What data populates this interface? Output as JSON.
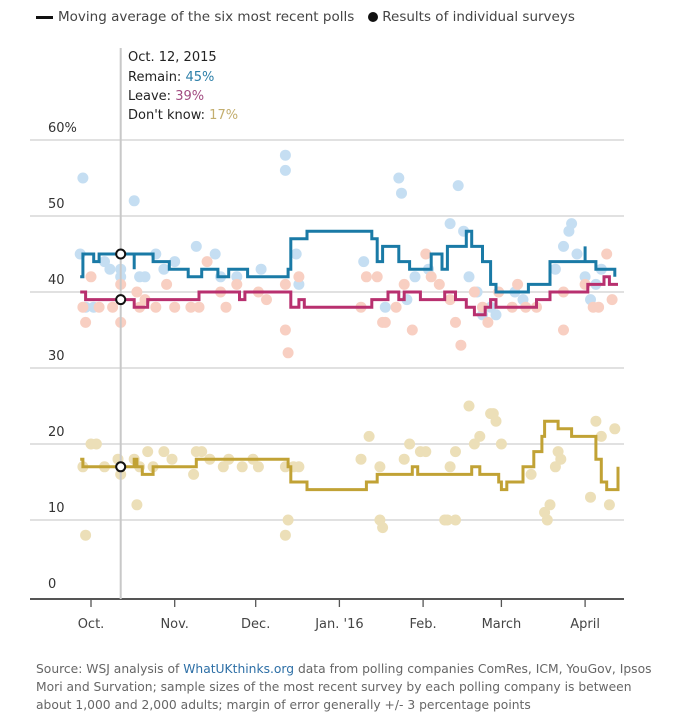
{
  "legend": {
    "line_label": "Moving average of the six most recent polls",
    "dot_label": "Results of individual surveys"
  },
  "tooltip": {
    "date": "Oct. 12, 2015",
    "remain_label": "Remain: ",
    "remain_value": "45%",
    "leave_label": "Leave: ",
    "leave_value": "39%",
    "dontknow_label": "Don't know: ",
    "dontknow_value": "17%"
  },
  "source": {
    "prefix": "Source: WSJ analysis of ",
    "link": "WhatUKthinks.org",
    "suffix": " data from polling companies ComRes, ICM, YouGov, Ipsos Mori and Survation; sample sizes of the most recent survey by each polling company is between about 1,000 and 2,000 adults; margin of error generally +/- 3 percentage points"
  },
  "chart_data": {
    "type": "line",
    "title": "",
    "xlabel": "",
    "ylabel": "",
    "x_unit": "days since Oct. 1, 2015",
    "xlim": [
      -3,
      198
    ],
    "ylim": [
      0,
      60
    ],
    "yticks": [
      0,
      10,
      20,
      30,
      40,
      50,
      60
    ],
    "ytick_labels": [
      "0",
      "10",
      "20",
      "30",
      "40",
      "50",
      "60%"
    ],
    "xticks": [
      0,
      31,
      61,
      92,
      123,
      152,
      183
    ],
    "xtick_labels": [
      "Oct.",
      "Nov.",
      "Dec.",
      "Jan. '16",
      "Feb.",
      "March",
      "April"
    ],
    "grid": true,
    "highlight_day": 11,
    "colors": {
      "remain": "#1a7aa6",
      "leave": "#b8306f",
      "dontknow": "#c1a235",
      "remain_dot": "#c5def2",
      "leave_dot": "#f8cfc2",
      "dontknow_dot": "#ecdfb8"
    },
    "series": [
      {
        "name": "Remain",
        "key": "remain",
        "steps": [
          [
            -4,
            42
          ],
          [
            -3,
            45
          ],
          [
            1,
            45
          ],
          [
            1,
            44
          ],
          [
            3,
            44
          ],
          [
            3,
            45
          ],
          [
            11,
            45
          ],
          [
            16,
            45
          ],
          [
            16,
            43
          ],
          [
            16,
            45
          ],
          [
            23,
            45
          ],
          [
            23,
            44
          ],
          [
            29,
            44
          ],
          [
            29,
            43
          ],
          [
            36,
            43
          ],
          [
            36,
            42
          ],
          [
            41,
            42
          ],
          [
            41,
            43
          ],
          [
            47,
            43
          ],
          [
            47,
            42
          ],
          [
            51,
            42
          ],
          [
            51,
            43
          ],
          [
            58,
            43
          ],
          [
            58,
            42
          ],
          [
            73,
            42
          ],
          [
            73,
            43
          ],
          [
            74,
            47
          ],
          [
            80,
            47
          ],
          [
            80,
            48
          ],
          [
            104,
            48
          ],
          [
            104,
            47
          ],
          [
            106,
            47
          ],
          [
            106,
            44
          ],
          [
            108,
            44
          ],
          [
            108,
            46
          ],
          [
            114,
            46
          ],
          [
            114,
            44
          ],
          [
            118,
            44
          ],
          [
            118,
            43
          ],
          [
            126,
            43
          ],
          [
            126,
            45
          ],
          [
            130,
            45
          ],
          [
            130,
            43
          ],
          [
            132,
            43
          ],
          [
            132,
            46
          ],
          [
            139,
            46
          ],
          [
            139,
            48
          ],
          [
            141,
            48
          ],
          [
            141,
            46
          ],
          [
            145,
            46
          ],
          [
            145,
            44
          ],
          [
            148,
            44
          ],
          [
            148,
            41
          ],
          [
            150,
            41
          ],
          [
            150,
            40
          ],
          [
            162,
            40
          ],
          [
            162,
            41
          ],
          [
            170,
            41
          ],
          [
            170,
            44
          ],
          [
            182,
            44
          ],
          [
            183,
            46
          ],
          [
            183,
            44
          ],
          [
            187,
            44
          ],
          [
            187,
            43
          ],
          [
            194,
            43
          ],
          [
            194,
            42
          ]
        ]
      },
      {
        "name": "Leave",
        "key": "leave",
        "steps": [
          [
            -4,
            40
          ],
          [
            -2,
            39
          ],
          [
            16,
            39
          ],
          [
            16,
            38
          ],
          [
            21,
            38
          ],
          [
            21,
            39
          ],
          [
            40,
            39
          ],
          [
            40,
            40
          ],
          [
            55,
            40
          ],
          [
            55,
            39
          ],
          [
            57,
            39
          ],
          [
            57,
            40
          ],
          [
            74,
            40
          ],
          [
            74,
            38
          ],
          [
            77,
            38
          ],
          [
            77,
            39
          ],
          [
            79,
            39
          ],
          [
            79,
            38
          ],
          [
            104,
            38
          ],
          [
            104,
            39
          ],
          [
            110,
            39
          ],
          [
            110,
            40
          ],
          [
            114,
            40
          ],
          [
            114,
            39
          ],
          [
            116,
            39
          ],
          [
            116,
            40
          ],
          [
            122,
            40
          ],
          [
            122,
            39
          ],
          [
            131,
            39
          ],
          [
            131,
            40
          ],
          [
            135,
            40
          ],
          [
            135,
            39
          ],
          [
            139,
            39
          ],
          [
            139,
            38
          ],
          [
            142,
            38
          ],
          [
            142,
            37
          ],
          [
            146,
            37
          ],
          [
            146,
            38
          ],
          [
            148,
            38
          ],
          [
            148,
            39
          ],
          [
            150,
            39
          ],
          [
            150,
            38
          ],
          [
            165,
            38
          ],
          [
            165,
            39
          ],
          [
            170,
            39
          ],
          [
            170,
            40
          ],
          [
            184,
            40
          ],
          [
            184,
            41
          ],
          [
            190,
            41
          ],
          [
            190,
            42
          ],
          [
            192,
            42
          ],
          [
            192,
            41
          ],
          [
            197,
            41
          ]
        ]
      },
      {
        "name": "Don't know",
        "key": "dontknow",
        "steps": [
          [
            -4,
            18
          ],
          [
            -3,
            17
          ],
          [
            16,
            17
          ],
          [
            16,
            18
          ],
          [
            17,
            17
          ],
          [
            19,
            17
          ],
          [
            19,
            16
          ],
          [
            23,
            16
          ],
          [
            23,
            17
          ],
          [
            39,
            17
          ],
          [
            39,
            18
          ],
          [
            73,
            18
          ],
          [
            73,
            17
          ],
          [
            74,
            15
          ],
          [
            80,
            15
          ],
          [
            80,
            14
          ],
          [
            102,
            14
          ],
          [
            102,
            15
          ],
          [
            106,
            15
          ],
          [
            106,
            16
          ],
          [
            119,
            16
          ],
          [
            119,
            17
          ],
          [
            121,
            17
          ],
          [
            121,
            16
          ],
          [
            141,
            16
          ],
          [
            141,
            17
          ],
          [
            144,
            17
          ],
          [
            144,
            16
          ],
          [
            151,
            16
          ],
          [
            151,
            15
          ],
          [
            152,
            14
          ],
          [
            154,
            14
          ],
          [
            154,
            15
          ],
          [
            159,
            15
          ],
          [
            160,
            17
          ],
          [
            164,
            17
          ],
          [
            164,
            19
          ],
          [
            166,
            19
          ],
          [
            167,
            21
          ],
          [
            168,
            23
          ],
          [
            173,
            23
          ],
          [
            173,
            22
          ],
          [
            178,
            22
          ],
          [
            178,
            21
          ],
          [
            187,
            21
          ],
          [
            187,
            18
          ],
          [
            189,
            18
          ],
          [
            189,
            15
          ],
          [
            191,
            15
          ],
          [
            191,
            14
          ],
          [
            206,
            14
          ],
          [
            206,
            16
          ],
          [
            210,
            16
          ],
          [
            210,
            15
          ],
          [
            212,
            15
          ],
          [
            212,
            17
          ]
        ]
      }
    ],
    "dots": {
      "remain": [
        [
          -4,
          45
        ],
        [
          -3,
          55
        ],
        [
          -2,
          38
        ],
        [
          1,
          38
        ],
        [
          5,
          44
        ],
        [
          7,
          43
        ],
        [
          11,
          43
        ],
        [
          11,
          42
        ],
        [
          16,
          52
        ],
        [
          18,
          42
        ],
        [
          20,
          42
        ],
        [
          24,
          45
        ],
        [
          27,
          43
        ],
        [
          31,
          44
        ],
        [
          39,
          46
        ],
        [
          46,
          45
        ],
        [
          48,
          42
        ],
        [
          54,
          42
        ],
        [
          63,
          43
        ],
        [
          72,
          56
        ],
        [
          72,
          58
        ],
        [
          76,
          45
        ],
        [
          77,
          41
        ],
        [
          101,
          44
        ],
        [
          109,
          38
        ],
        [
          114,
          55
        ],
        [
          115,
          53
        ],
        [
          117,
          39
        ],
        [
          120,
          42
        ],
        [
          125,
          43
        ],
        [
          133,
          49
        ],
        [
          136,
          54
        ],
        [
          138,
          48
        ],
        [
          140,
          42
        ],
        [
          143,
          40
        ],
        [
          145,
          37
        ],
        [
          148,
          38
        ],
        [
          150,
          37
        ],
        [
          157,
          40
        ],
        [
          160,
          39
        ],
        [
          172,
          43
        ],
        [
          175,
          46
        ],
        [
          177,
          48
        ],
        [
          178,
          49
        ],
        [
          180,
          45
        ],
        [
          183,
          42
        ],
        [
          185,
          39
        ],
        [
          187,
          41
        ],
        [
          189,
          43
        ]
      ],
      "leave": [
        [
          -3,
          38
        ],
        [
          -2,
          36
        ],
        [
          0,
          42
        ],
        [
          3,
          38
        ],
        [
          8,
          38
        ],
        [
          11,
          39
        ],
        [
          11,
          36
        ],
        [
          11,
          41
        ],
        [
          17,
          40
        ],
        [
          18,
          38
        ],
        [
          20,
          39
        ],
        [
          24,
          38
        ],
        [
          28,
          41
        ],
        [
          31,
          38
        ],
        [
          37,
          38
        ],
        [
          40,
          38
        ],
        [
          43,
          44
        ],
        [
          48,
          40
        ],
        [
          50,
          38
        ],
        [
          54,
          41
        ],
        [
          62,
          40
        ],
        [
          65,
          39
        ],
        [
          72,
          41
        ],
        [
          72,
          35
        ],
        [
          73,
          32
        ],
        [
          77,
          42
        ],
        [
          100,
          38
        ],
        [
          102,
          42
        ],
        [
          106,
          42
        ],
        [
          108,
          36
        ],
        [
          109,
          36
        ],
        [
          113,
          38
        ],
        [
          116,
          41
        ],
        [
          119,
          35
        ],
        [
          124,
          45
        ],
        [
          126,
          42
        ],
        [
          129,
          41
        ],
        [
          133,
          39
        ],
        [
          135,
          36
        ],
        [
          137,
          33
        ],
        [
          142,
          40
        ],
        [
          145,
          38
        ],
        [
          147,
          36
        ],
        [
          151,
          40
        ],
        [
          156,
          38
        ],
        [
          158,
          41
        ],
        [
          161,
          38
        ],
        [
          165,
          38
        ],
        [
          175,
          35
        ],
        [
          175,
          40
        ],
        [
          183,
          41
        ],
        [
          186,
          38
        ],
        [
          188,
          38
        ],
        [
          191,
          45
        ],
        [
          193,
          39
        ]
      ]
    }
  }
}
